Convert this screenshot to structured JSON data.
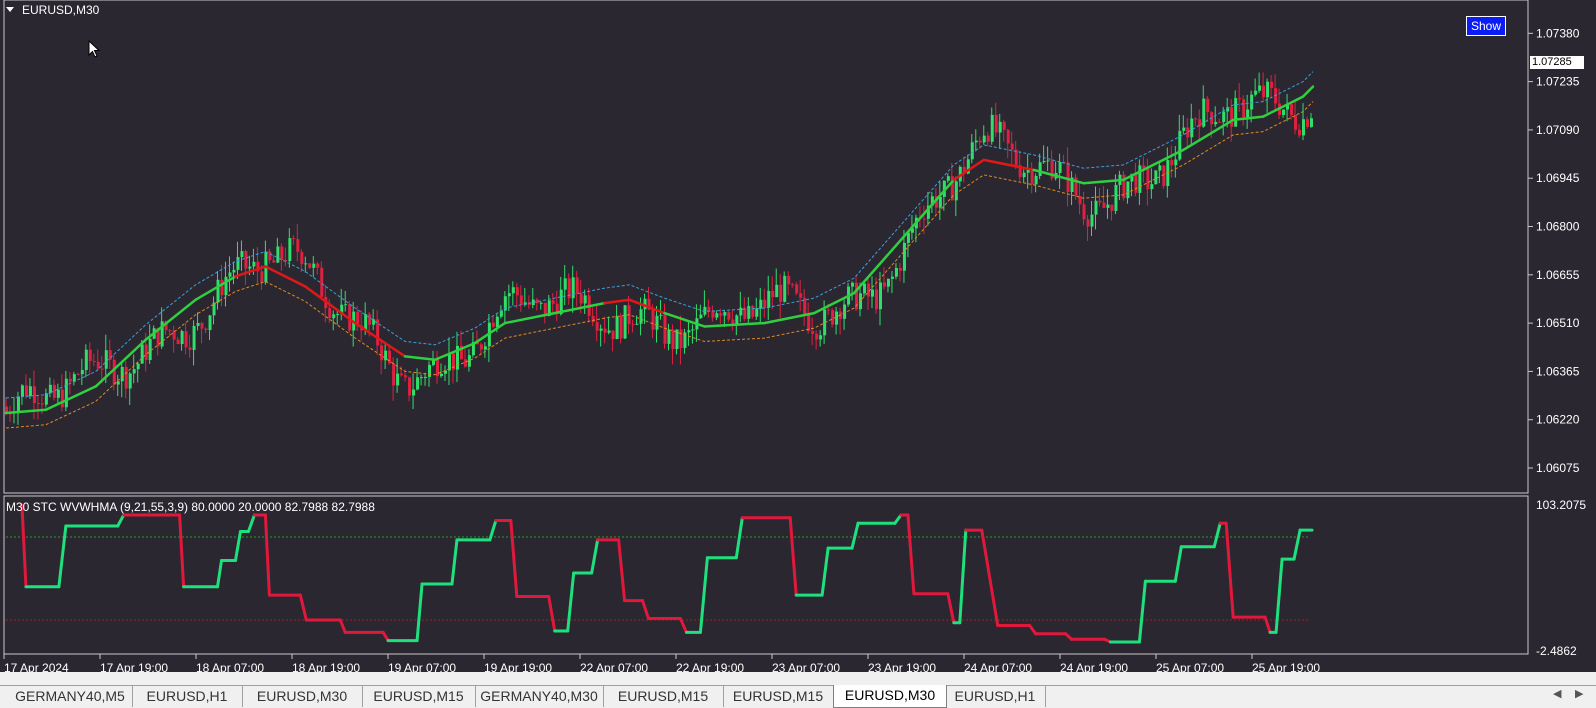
{
  "window": {
    "title": "EURUSD,M30",
    "show_button": "Show",
    "current_price": "1.07285"
  },
  "price_axis": [
    "1.07380",
    "1.07235",
    "1.07090",
    "1.06945",
    "1.06800",
    "1.06655",
    "1.06510",
    "1.06365",
    "1.06220",
    "1.06075"
  ],
  "indicator": {
    "label": "M30 STC WVWHMA  (9,21,55,3,9) 80.0000 20.0000 82.7988 82.7988",
    "axis_top": "103.2075",
    "axis_bottom": "-2.4862",
    "colors": {
      "up": "#1ee07c",
      "down": "#e0193c",
      "level_high": "#20a020",
      "level_low": "#a02020"
    }
  },
  "time_axis": [
    "17 Apr 2024",
    "17 Apr 19:00",
    "18 Apr 07:00",
    "18 Apr 19:00",
    "19 Apr 07:00",
    "19 Apr 19:00",
    "22 Apr 07:00",
    "22 Apr 19:00",
    "23 Apr 07:00",
    "23 Apr 19:00",
    "24 Apr 07:00",
    "24 Apr 19:00",
    "25 Apr 07:00",
    "25 Apr 19:00"
  ],
  "tabs": [
    {
      "label": "GERMANY40,M5",
      "active": false
    },
    {
      "label": "EURUSD,H1",
      "active": false
    },
    {
      "label": "EURUSD,M30",
      "active": false
    },
    {
      "label": "EURUSD,M15",
      "active": false
    },
    {
      "label": "GERMANY40,M30",
      "active": false
    },
    {
      "label": "EURUSD,M15",
      "active": false
    },
    {
      "label": "EURUSD,M15",
      "active": false
    },
    {
      "label": "EURUSD,M30",
      "active": true
    },
    {
      "label": "EURUSD,H1",
      "active": false
    }
  ],
  "chart_data": {
    "type": "line",
    "price_range": [
      1.0603,
      1.0745
    ],
    "ma_series": [
      {
        "x": 0,
        "v": 1.0624,
        "dir": "up"
      },
      {
        "x": 40,
        "v": 1.0625,
        "dir": "up"
      },
      {
        "x": 90,
        "v": 1.0632,
        "dir": "up"
      },
      {
        "x": 140,
        "v": 1.0646,
        "dir": "up"
      },
      {
        "x": 190,
        "v": 1.0658,
        "dir": "up"
      },
      {
        "x": 230,
        "v": 1.0665,
        "dir": "up"
      },
      {
        "x": 260,
        "v": 1.0668,
        "dir": "down"
      },
      {
        "x": 300,
        "v": 1.0662,
        "dir": "down"
      },
      {
        "x": 350,
        "v": 1.0651,
        "dir": "down"
      },
      {
        "x": 400,
        "v": 1.0641,
        "dir": "down"
      },
      {
        "x": 430,
        "v": 1.064,
        "dir": "up"
      },
      {
        "x": 470,
        "v": 1.0645,
        "dir": "up"
      },
      {
        "x": 500,
        "v": 1.0651,
        "dir": "up"
      },
      {
        "x": 550,
        "v": 1.0654,
        "dir": "up"
      },
      {
        "x": 600,
        "v": 1.0657,
        "dir": "up"
      },
      {
        "x": 625,
        "v": 1.0658,
        "dir": "down"
      },
      {
        "x": 660,
        "v": 1.0654,
        "dir": "down"
      },
      {
        "x": 700,
        "v": 1.065,
        "dir": "up"
      },
      {
        "x": 760,
        "v": 1.0651,
        "dir": "up"
      },
      {
        "x": 810,
        "v": 1.0654,
        "dir": "up"
      },
      {
        "x": 850,
        "v": 1.066,
        "dir": "up"
      },
      {
        "x": 900,
        "v": 1.0677,
        "dir": "up"
      },
      {
        "x": 950,
        "v": 1.0694,
        "dir": "up"
      },
      {
        "x": 980,
        "v": 1.07,
        "dir": "down"
      },
      {
        "x": 1030,
        "v": 1.0697,
        "dir": "down"
      },
      {
        "x": 1080,
        "v": 1.0693,
        "dir": "up"
      },
      {
        "x": 1120,
        "v": 1.0694,
        "dir": "up"
      },
      {
        "x": 1180,
        "v": 1.0703,
        "dir": "up"
      },
      {
        "x": 1230,
        "v": 1.0712,
        "dir": "up"
      },
      {
        "x": 1260,
        "v": 1.0713,
        "dir": "up"
      },
      {
        "x": 1300,
        "v": 1.0719,
        "dir": "up"
      },
      {
        "x": 1310,
        "v": 1.0722,
        "dir": "up"
      }
    ],
    "stc_series": [
      {
        "x": 16,
        "v": 103,
        "dir": "down"
      },
      {
        "x": 20,
        "v": 44,
        "dir": "down"
      },
      {
        "x": 53,
        "v": 44,
        "dir": "up"
      },
      {
        "x": 60,
        "v": 88,
        "dir": "up"
      },
      {
        "x": 112,
        "v": 88,
        "dir": "up"
      },
      {
        "x": 118,
        "v": 96,
        "dir": "up"
      },
      {
        "x": 174,
        "v": 96,
        "dir": "down"
      },
      {
        "x": 178,
        "v": 44,
        "dir": "down"
      },
      {
        "x": 212,
        "v": 44,
        "dir": "up"
      },
      {
        "x": 216,
        "v": 63,
        "dir": "up"
      },
      {
        "x": 230,
        "v": 63,
        "dir": "up"
      },
      {
        "x": 235,
        "v": 84,
        "dir": "up"
      },
      {
        "x": 243,
        "v": 84,
        "dir": "up"
      },
      {
        "x": 249,
        "v": 96,
        "dir": "up"
      },
      {
        "x": 260,
        "v": 96,
        "dir": "down"
      },
      {
        "x": 264,
        "v": 38,
        "dir": "down"
      },
      {
        "x": 295,
        "v": 38,
        "dir": "down"
      },
      {
        "x": 301,
        "v": 20,
        "dir": "down"
      },
      {
        "x": 335,
        "v": 20,
        "dir": "down"
      },
      {
        "x": 340,
        "v": 11,
        "dir": "down"
      },
      {
        "x": 378,
        "v": 11,
        "dir": "down"
      },
      {
        "x": 383,
        "v": 5,
        "dir": "down"
      },
      {
        "x": 412,
        "v": 5,
        "dir": "up"
      },
      {
        "x": 417,
        "v": 46,
        "dir": "up"
      },
      {
        "x": 447,
        "v": 46,
        "dir": "up"
      },
      {
        "x": 452,
        "v": 78,
        "dir": "up"
      },
      {
        "x": 485,
        "v": 78,
        "dir": "up"
      },
      {
        "x": 491,
        "v": 92,
        "dir": "up"
      },
      {
        "x": 506,
        "v": 92,
        "dir": "down"
      },
      {
        "x": 512,
        "v": 37,
        "dir": "down"
      },
      {
        "x": 544,
        "v": 37,
        "dir": "down"
      },
      {
        "x": 550,
        "v": 12,
        "dir": "down"
      },
      {
        "x": 563,
        "v": 12,
        "dir": "up"
      },
      {
        "x": 569,
        "v": 54,
        "dir": "up"
      },
      {
        "x": 587,
        "v": 54,
        "dir": "up"
      },
      {
        "x": 593,
        "v": 78,
        "dir": "up"
      },
      {
        "x": 614,
        "v": 78,
        "dir": "down"
      },
      {
        "x": 620,
        "v": 34,
        "dir": "down"
      },
      {
        "x": 638,
        "v": 34,
        "dir": "down"
      },
      {
        "x": 644,
        "v": 21,
        "dir": "down"
      },
      {
        "x": 676,
        "v": 21,
        "dir": "down"
      },
      {
        "x": 682,
        "v": 11,
        "dir": "down"
      },
      {
        "x": 696,
        "v": 11,
        "dir": "up"
      },
      {
        "x": 703,
        "v": 65,
        "dir": "up"
      },
      {
        "x": 732,
        "v": 65,
        "dir": "up"
      },
      {
        "x": 738,
        "v": 94,
        "dir": "up"
      },
      {
        "x": 786,
        "v": 94,
        "dir": "down"
      },
      {
        "x": 792,
        "v": 38,
        "dir": "down"
      },
      {
        "x": 818,
        "v": 38,
        "dir": "up"
      },
      {
        "x": 824,
        "v": 72,
        "dir": "up"
      },
      {
        "x": 848,
        "v": 72,
        "dir": "up"
      },
      {
        "x": 854,
        "v": 90,
        "dir": "up"
      },
      {
        "x": 891,
        "v": 90,
        "dir": "up"
      },
      {
        "x": 897,
        "v": 96,
        "dir": "up"
      },
      {
        "x": 904,
        "v": 96,
        "dir": "down"
      },
      {
        "x": 910,
        "v": 39,
        "dir": "down"
      },
      {
        "x": 944,
        "v": 39,
        "dir": "down"
      },
      {
        "x": 950,
        "v": 18,
        "dir": "down"
      },
      {
        "x": 956,
        "v": 18,
        "dir": "up"
      },
      {
        "x": 962,
        "v": 85,
        "dir": "up"
      },
      {
        "x": 978,
        "v": 85,
        "dir": "down"
      },
      {
        "x": 994,
        "v": 16,
        "dir": "down"
      },
      {
        "x": 1026,
        "v": 16,
        "dir": "down"
      },
      {
        "x": 1032,
        "v": 10,
        "dir": "down"
      },
      {
        "x": 1062,
        "v": 10,
        "dir": "down"
      },
      {
        "x": 1068,
        "v": 6,
        "dir": "down"
      },
      {
        "x": 1101,
        "v": 6,
        "dir": "down"
      },
      {
        "x": 1107,
        "v": 4,
        "dir": "down"
      },
      {
        "x": 1136,
        "v": 4,
        "dir": "up"
      },
      {
        "x": 1142,
        "v": 48,
        "dir": "up"
      },
      {
        "x": 1172,
        "v": 48,
        "dir": "up"
      },
      {
        "x": 1178,
        "v": 73,
        "dir": "up"
      },
      {
        "x": 1211,
        "v": 73,
        "dir": "up"
      },
      {
        "x": 1217,
        "v": 90,
        "dir": "up"
      },
      {
        "x": 1223,
        "v": 90,
        "dir": "down"
      },
      {
        "x": 1230,
        "v": 22,
        "dir": "down"
      },
      {
        "x": 1262,
        "v": 22,
        "dir": "down"
      },
      {
        "x": 1267,
        "v": 11,
        "dir": "down"
      },
      {
        "x": 1273,
        "v": 11,
        "dir": "up"
      },
      {
        "x": 1279,
        "v": 64,
        "dir": "up"
      },
      {
        "x": 1291,
        "v": 64,
        "dir": "up"
      },
      {
        "x": 1297,
        "v": 85,
        "dir": "up"
      },
      {
        "x": 1309,
        "v": 85,
        "dir": "up"
      }
    ],
    "stc_range": [
      -2.4862,
      103.2075
    ],
    "stc_levels": [
      80,
      20
    ]
  }
}
